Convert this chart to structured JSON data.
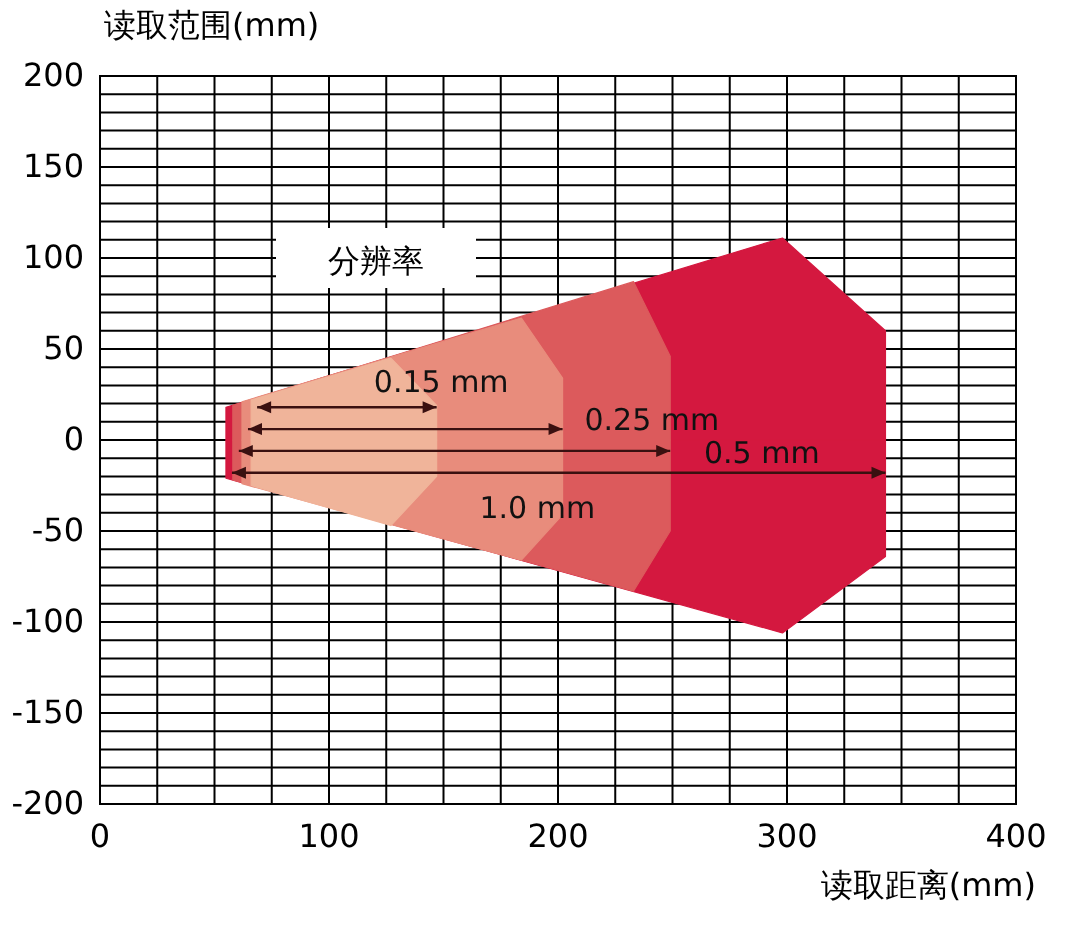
{
  "chart_data": {
    "type": "area",
    "xlabel": "读取距离(mm)",
    "ylabel": "读取范围(mm)",
    "xlim": [
      0,
      400
    ],
    "ylim": [
      -200,
      200
    ],
    "xticks": [
      0,
      {
        "value": 25,
        "label": null
      },
      {
        "value": 50,
        "label": null
      },
      {
        "value": 75,
        "label": null
      },
      100,
      {
        "value": 125,
        "label": null
      },
      {
        "value": 150,
        "label": null
      },
      {
        "value": 175,
        "label": null
      },
      200,
      {
        "value": 225,
        "label": null
      },
      {
        "value": 250,
        "label": null
      },
      {
        "value": 275,
        "label": null
      },
      300,
      {
        "value": 325,
        "label": null
      },
      {
        "value": 350,
        "label": null
      },
      {
        "value": 375,
        "label": null
      },
      400
    ],
    "yticks": [
      -200,
      {
        "value": -190,
        "label": null
      },
      {
        "value": -180,
        "label": null
      },
      {
        "value": -170,
        "label": null
      },
      {
        "value": -160,
        "label": null
      },
      -150,
      {
        "value": -140,
        "label": null
      },
      {
        "value": -130,
        "label": null
      },
      {
        "value": -120,
        "label": null
      },
      {
        "value": -110,
        "label": null
      },
      -100,
      {
        "value": -90,
        "label": null
      },
      {
        "value": -80,
        "label": null
      },
      {
        "value": -70,
        "label": null
      },
      {
        "value": -60,
        "label": null
      },
      -50,
      {
        "value": -40,
        "label": null
      },
      {
        "value": -30,
        "label": null
      },
      {
        "value": -20,
        "label": null
      },
      {
        "value": -10,
        "label": null
      },
      0,
      {
        "value": 10,
        "label": null
      },
      {
        "value": 20,
        "label": null
      },
      {
        "value": 30,
        "label": null
      },
      {
        "value": 40,
        "label": null
      },
      50,
      {
        "value": 60,
        "label": null
      },
      {
        "value": 70,
        "label": null
      },
      {
        "value": 80,
        "label": null
      },
      {
        "value": 90,
        "label": null
      },
      100,
      {
        "value": 110,
        "label": null
      },
      {
        "value": 120,
        "label": null
      },
      {
        "value": 130,
        "label": null
      },
      {
        "value": 140,
        "label": null
      },
      150,
      {
        "value": 160,
        "label": null
      },
      {
        "value": 170,
        "label": null
      },
      {
        "value": 180,
        "label": null
      },
      {
        "value": 190,
        "label": null
      },
      200
    ],
    "grid": true,
    "series": [
      {
        "color": "#d4183f",
        "x": [
          55,
          298,
          343
        ],
        "values": [
          18,
          111,
          60
        ]
      },
      {
        "color": "#d4183f",
        "x": [
          55,
          298,
          343
        ],
        "values": [
          -21,
          -106,
          -64
        ]
      },
      {
        "color": "#dc5a5c",
        "x": [
          58,
          233,
          249
        ],
        "values": [
          19,
          87,
          46
        ]
      },
      {
        "color": "#dc5a5c",
        "x": [
          58,
          233,
          249
        ],
        "values": [
          -22,
          -83,
          -50
        ]
      },
      {
        "color": "#e88c7c",
        "x": [
          62,
          184,
          202
        ],
        "values": [
          21,
          67,
          34
        ]
      },
      {
        "color": "#e88c7c",
        "x": [
          62,
          184,
          202
        ],
        "values": [
          -24,
          -66,
          -41
        ]
      },
      {
        "color": "#f0b49a",
        "x": [
          66,
          127,
          147
        ],
        "values": [
          22,
          45,
          19
        ]
      },
      {
        "color": "#f0b49a",
        "x": [
          66,
          127,
          147
        ],
        "values": [
          -25,
          -47,
          -20
        ]
      }
    ],
    "annotations": [
      "分辨率",
      {
        "text": "0.15 mm",
        "x": 147,
        "y": 18
      },
      {
        "text": "1.0 mm",
        "x": 202,
        "y": 6
      },
      {
        "text": "0.25 mm",
        "x": 249,
        "y": -6
      },
      {
        "text": "0.5 mm",
        "x": 343,
        "y": -18
      }
    ]
  }
}
